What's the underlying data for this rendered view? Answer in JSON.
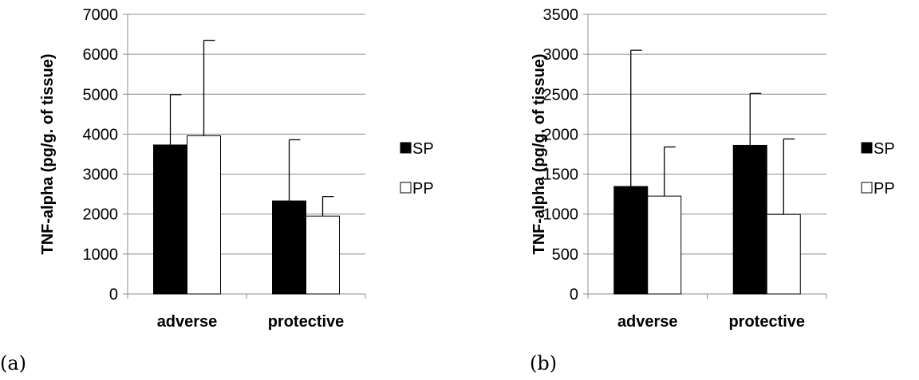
{
  "chart_data": [
    {
      "type": "bar",
      "panel_label": "(a)",
      "ylabel": "TNF-alpha (pg/g. of tissue)",
      "ylim": [
        0,
        7000
      ],
      "yticks": [
        0,
        1000,
        2000,
        3000,
        4000,
        5000,
        6000,
        7000
      ],
      "grid": true,
      "legend_position": "right",
      "categories": [
        "adverse",
        "protective"
      ],
      "series": [
        {
          "name": "SP",
          "color": "#000000",
          "values": [
            3730,
            2330
          ],
          "error_upper": [
            4990,
            3860
          ]
        },
        {
          "name": "PP",
          "color": "#ffffff",
          "values": [
            3960,
            1950
          ],
          "error_upper": [
            6350,
            2440
          ]
        }
      ]
    },
    {
      "type": "bar",
      "panel_label": "(b)",
      "ylabel": "TNF-alpha (pg/g. of tissue)",
      "ylim": [
        0,
        3500
      ],
      "yticks": [
        0,
        500,
        1000,
        1500,
        2000,
        2500,
        3000,
        3500
      ],
      "grid": true,
      "legend_position": "right",
      "categories": [
        "adverse",
        "protective"
      ],
      "series": [
        {
          "name": "SP",
          "color": "#000000",
          "values": [
            1345,
            1860
          ],
          "error_upper": [
            3050,
            2510
          ]
        },
        {
          "name": "PP",
          "color": "#ffffff",
          "values": [
            1225,
            995
          ],
          "error_upper": [
            1840,
            1940
          ]
        }
      ]
    }
  ]
}
